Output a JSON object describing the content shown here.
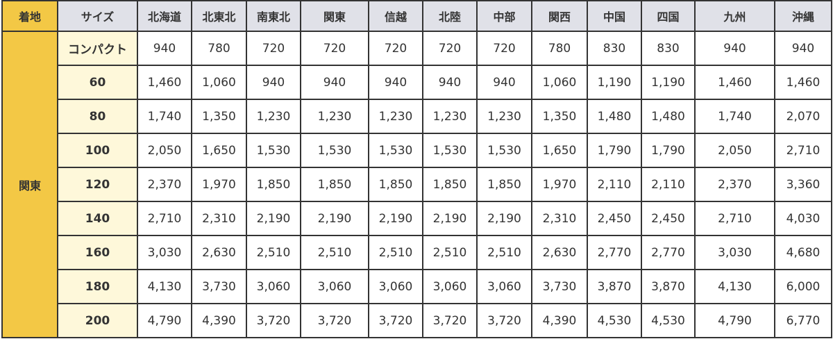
{
  "colors": {
    "header_gold": "#f3c845",
    "header_grey": "#e0e1e8",
    "size_bg": "#fef8da"
  },
  "headers": [
    "着地",
    "サイズ",
    "北海道",
    "北東北",
    "南東北",
    "関東",
    "信越",
    "北陸",
    "中部",
    "関西",
    "中国",
    "四国",
    "九州",
    "沖縄"
  ],
  "origin": "関東",
  "rows": [
    {
      "size": "コンパクト",
      "prices": [
        "940",
        "780",
        "720",
        "720",
        "720",
        "720",
        "720",
        "780",
        "830",
        "830",
        "940",
        "940"
      ]
    },
    {
      "size": "60",
      "prices": [
        "1,460",
        "1,060",
        "940",
        "940",
        "940",
        "940",
        "940",
        "1,060",
        "1,190",
        "1,190",
        "1,460",
        "1,460"
      ]
    },
    {
      "size": "80",
      "prices": [
        "1,740",
        "1,350",
        "1,230",
        "1,230",
        "1,230",
        "1,230",
        "1,230",
        "1,350",
        "1,480",
        "1,480",
        "1,740",
        "2,070"
      ]
    },
    {
      "size": "100",
      "prices": [
        "2,050",
        "1,650",
        "1,530",
        "1,530",
        "1,530",
        "1,530",
        "1,530",
        "1,650",
        "1,790",
        "1,790",
        "2,050",
        "2,710"
      ]
    },
    {
      "size": "120",
      "prices": [
        "2,370",
        "1,970",
        "1,850",
        "1,850",
        "1,850",
        "1,850",
        "1,850",
        "1,970",
        "2,110",
        "2,110",
        "2,370",
        "3,360"
      ]
    },
    {
      "size": "140",
      "prices": [
        "2,710",
        "2,310",
        "2,190",
        "2,190",
        "2,190",
        "2,190",
        "2,190",
        "2,310",
        "2,450",
        "2,450",
        "2,710",
        "4,030"
      ]
    },
    {
      "size": "160",
      "prices": [
        "3,030",
        "2,630",
        "2,510",
        "2,510",
        "2,510",
        "2,510",
        "2,510",
        "2,630",
        "2,770",
        "2,770",
        "3,030",
        "4,680"
      ]
    },
    {
      "size": "180",
      "prices": [
        "4,130",
        "3,730",
        "3,060",
        "3,060",
        "3,060",
        "3,060",
        "3,060",
        "3,730",
        "3,870",
        "3,870",
        "4,130",
        "6,000"
      ]
    },
    {
      "size": "200",
      "prices": [
        "4,790",
        "4,390",
        "3,720",
        "3,720",
        "3,720",
        "3,720",
        "3,720",
        "4,390",
        "4,530",
        "4,530",
        "4,790",
        "6,770"
      ]
    }
  ]
}
